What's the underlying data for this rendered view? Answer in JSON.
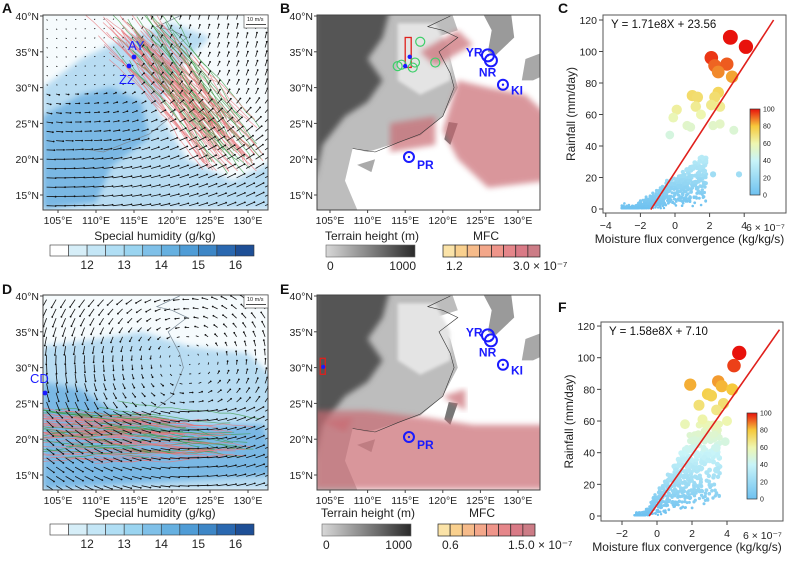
{
  "panels": {
    "A": {
      "label": "A",
      "station_labels": [
        "AY",
        "ZZ"
      ],
      "vector_key": "10 m/s"
    },
    "B": {
      "label": "B",
      "station_labels": [
        "YR",
        "NR",
        "KI",
        "PR"
      ]
    },
    "C": {
      "label": "C"
    },
    "D": {
      "label": "D",
      "station_labels": [
        "CD"
      ],
      "vector_key": "10 m/s"
    },
    "E": {
      "label": "E",
      "station_labels": [
        "YR",
        "NR",
        "KI",
        "PR"
      ]
    },
    "F": {
      "label": "F"
    }
  },
  "map_axes": {
    "lat_ticks": [
      "40°N",
      "35°N",
      "30°N",
      "25°N",
      "20°N",
      "15°N"
    ],
    "lon_ticks": [
      "105°E",
      "110°E",
      "115°E",
      "120°E",
      "125°E",
      "130°E"
    ]
  },
  "humidity_colorbar": {
    "title": "Special humidity (g/kg)",
    "labels": [
      "12",
      "13",
      "14",
      "15",
      "16"
    ],
    "colors": [
      "#ffffff",
      "#d6eef8",
      "#c4e6f6",
      "#b0def4",
      "#9ad4f0",
      "#7fc0e8",
      "#66b0e0",
      "#4f9cd6",
      "#3d86c6",
      "#2a68b0",
      "#1e4f96"
    ]
  },
  "terrain_colorbar": {
    "title": "Terrain height (m)",
    "min": "0",
    "max": "1000"
  },
  "mfc_colorbar_top": {
    "title": "MFC",
    "min": "1.2",
    "max": "3.0 × 10⁻⁷"
  },
  "mfc_colorbar_bottom": {
    "title": "MFC",
    "min": "0.6",
    "max": "1.5.0 × 10⁻⁷"
  },
  "mfc_colors": [
    "#fbe3a8",
    "#f9d08e",
    "#f6bb8a",
    "#f3a78a",
    "#ef958a",
    "#e5868a",
    "#d97a86",
    "#cc7c86"
  ],
  "chart_data": [
    {
      "panel": "C",
      "type": "scatter",
      "xlabel": "Moisture flux convergence (kg/kg/s)",
      "ylabel": "Rainfall (mm/day)",
      "x_scale_label": "6 × 10⁻⁷",
      "x_ticks": [
        "−4",
        "−2",
        "0",
        "2",
        "4"
      ],
      "y_ticks": [
        "0",
        "20",
        "40",
        "60",
        "80",
        "100",
        "120"
      ],
      "xlim": [
        -4,
        6
      ],
      "ylim": [
        0,
        120
      ],
      "equation": "Y = 1.71e8X + 23.56",
      "fit": {
        "slope": 1.71,
        "intercept": 23.56,
        "x_range": [
          -1.4,
          5.7
        ]
      },
      "colorbar": {
        "range": [
          0,
          100
        ],
        "ticks": [
          "0",
          "20",
          "40",
          "60",
          "80",
          "100"
        ]
      },
      "highlight_points": [
        [
          3.2,
          109
        ],
        [
          4.1,
          103
        ],
        [
          2.1,
          96
        ],
        [
          2.3,
          91
        ],
        [
          3.0,
          92
        ],
        [
          2.5,
          87
        ],
        [
          3.3,
          84
        ],
        [
          1.0,
          72
        ],
        [
          1.3,
          71
        ],
        [
          2.5,
          74
        ],
        [
          2.3,
          71
        ],
        [
          2.1,
          66
        ],
        [
          1.2,
          65
        ],
        [
          0.1,
          63
        ],
        [
          -0.1,
          58
        ],
        [
          1.5,
          60
        ],
        [
          2.6,
          65
        ],
        [
          2.2,
          53
        ],
        [
          2.6,
          54
        ],
        [
          3.4,
          50
        ],
        [
          0.7,
          53
        ],
        [
          0.9,
          52
        ],
        [
          -0.3,
          47
        ],
        [
          3.7,
          22
        ],
        [
          2.2,
          22
        ]
      ],
      "cloud": {
        "x_range": [
          -3.1,
          1.8
        ],
        "y_max": 45,
        "count": 650,
        "slope": 6,
        "intercept": 14
      }
    },
    {
      "panel": "F",
      "type": "scatter",
      "xlabel": "Moisture flux convergence (kg/kg/s)",
      "ylabel": "Rainfall (mm/day)",
      "x_scale_label": "6 × 10⁻⁷",
      "x_ticks": [
        "−2",
        "0",
        "2",
        "4"
      ],
      "y_ticks": [
        "0",
        "20",
        "40",
        "60",
        "80",
        "100",
        "120"
      ],
      "xlim": [
        -3.2,
        7.2
      ],
      "ylim": [
        0,
        120
      ],
      "equation": "Y = 1.58e8X + 7.10",
      "fit": {
        "slope": 1.58,
        "intercept": 7.1,
        "x_range": [
          -0.45,
          7.0
        ]
      },
      "colorbar": {
        "range": [
          0,
          100
        ],
        "ticks": [
          "0",
          "20",
          "40",
          "60",
          "80",
          "100"
        ]
      },
      "highlight_points": [
        [
          4.7,
          103
        ],
        [
          4.4,
          95
        ],
        [
          1.9,
          83
        ],
        [
          3.5,
          85
        ],
        [
          3.7,
          82
        ],
        [
          4.3,
          80
        ],
        [
          2.9,
          77
        ],
        [
          3.1,
          76
        ],
        [
          3.8,
          71
        ],
        [
          2.4,
          70
        ],
        [
          3.4,
          67
        ],
        [
          4.0,
          60
        ],
        [
          2.6,
          61
        ],
        [
          1.6,
          58
        ],
        [
          3.9,
          47
        ],
        [
          3.4,
          43
        ],
        [
          3.4,
          29
        ]
      ],
      "cloud": {
        "x_range": [
          -1.3,
          3.6
        ],
        "y_max": 58,
        "count": 650,
        "slope": 13,
        "intercept": 10
      }
    }
  ]
}
